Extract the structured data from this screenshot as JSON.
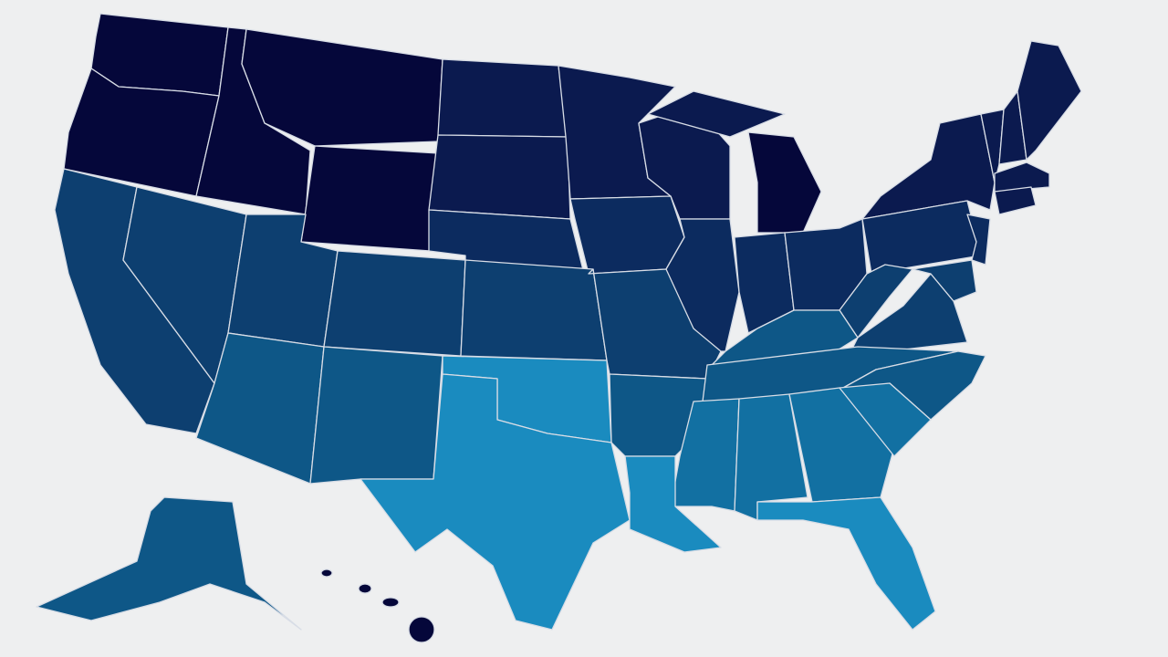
{
  "map": {
    "fills": [
      "#05073a",
      "#0b1a4f",
      "#0c2b5f",
      "#0d3f70",
      "#0e5787",
      "#1270a2",
      "#1a8bbf"
    ]
  }
}
